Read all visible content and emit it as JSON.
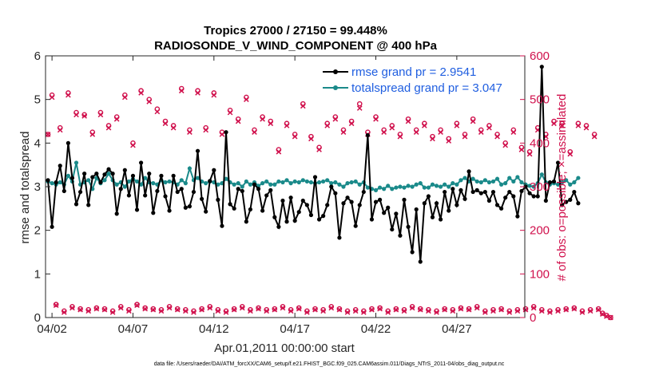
{
  "title_line1": "Tropics 27000 / 27150 = 99.448%",
  "title_line2": "RADIOSONDE_V_WIND_COMPONENT @ 400 hPa",
  "xlabel": "Apr.01,2011 00:00:00 start",
  "ylabel_left": "rmse and totalspread",
  "ylabel_right": "# of obs: o=possible; ×=assimilated",
  "footer": "data file: /Users/raeder/DAI/ATM_forcXX/CAM6_setup/f.e21.FHIST_BGC.f09_025.CAM6assim.011/Diags_NTrS_2011-04/obs_diag_output.nc",
  "colors": {
    "rmse": "#000000",
    "spread": "#1a8a8a",
    "obs": "#d0104c",
    "legend_text": "#1f5ee0"
  },
  "chart_data": {
    "type": "line",
    "x_unit": "days since Apr.01,2011 00:00:00",
    "xlim": [
      0.6,
      30.2
    ],
    "ylim_left": [
      0,
      6
    ],
    "ylim_right": [
      0,
      600
    ],
    "x_ticks": [
      {
        "x": 1,
        "label": "04/02"
      },
      {
        "x": 6,
        "label": "04/07"
      },
      {
        "x": 11,
        "label": "04/12"
      },
      {
        "x": 16,
        "label": "04/17"
      },
      {
        "x": 21,
        "label": "04/22"
      },
      {
        "x": 26,
        "label": "04/27"
      }
    ],
    "y_ticks_left": [
      "0",
      "1",
      "2",
      "3",
      "4",
      "5",
      "6"
    ],
    "y_ticks_right": [
      "0",
      "100",
      "200",
      "300",
      "400",
      "500",
      "600"
    ],
    "legend": [
      {
        "series": "rmse",
        "label": "rmse grand pr = 2.9541"
      },
      {
        "series": "spread",
        "label": "totalspread grand pr = 3.047"
      }
    ],
    "step_days": 0.25,
    "x_start": 0.75,
    "series": [
      {
        "name": "rmse",
        "axis": "left",
        "values": [
          3.15,
          2.08,
          3.1,
          3.48,
          2.9,
          4.0,
          3.2,
          2.6,
          2.88,
          3.3,
          2.58,
          3.22,
          3.3,
          3.1,
          3.28,
          3.4,
          3.3,
          2.38,
          2.95,
          3.38,
          2.8,
          3.25,
          2.47,
          3.55,
          2.8,
          3.3,
          2.4,
          2.9,
          3.25,
          2.78,
          2.45,
          3.25,
          2.88,
          2.95,
          2.52,
          2.55,
          2.88,
          3.82,
          2.72,
          2.43,
          3.13,
          3.38,
          2.7,
          2.1,
          4.25,
          2.6,
          2.5,
          2.95,
          2.9,
          2.2,
          2.48,
          3.05,
          2.95,
          2.45,
          2.8,
          2.92,
          2.3,
          2.08,
          2.68,
          2.2,
          2.75,
          2.22,
          2.42,
          2.68,
          2.58,
          2.35,
          3.22,
          2.25,
          2.33,
          2.58,
          3.0,
          2.85,
          1.83,
          2.62,
          2.75,
          2.65,
          2.1,
          2.58,
          2.88,
          4.18,
          2.25,
          2.65,
          2.7,
          2.4,
          2.52,
          2.02,
          2.38,
          1.88,
          2.7,
          2.08,
          1.5,
          2.48,
          1.28,
          2.62,
          2.78,
          2.3,
          2.62,
          2.25,
          2.88,
          2.45,
          2.95,
          2.58,
          2.92,
          2.72,
          3.35,
          2.88,
          2.92,
          2.85,
          2.88,
          2.68,
          2.88,
          2.58,
          2.5,
          2.75,
          2.88,
          2.78,
          2.32,
          2.9,
          3.0,
          2.85,
          2.78,
          2.78,
          5.75,
          2.68,
          3.1,
          3.12,
          3.55,
          2.58,
          2.65,
          2.7,
          2.88,
          2.62
        ]
      },
      {
        "name": "spread",
        "axis": "left",
        "values": [
          3.12,
          3.08,
          3.05,
          3.1,
          3.05,
          3.25,
          3.12,
          3.55,
          3.05,
          3.1,
          3.15,
          2.95,
          3.2,
          3.08,
          3.15,
          3.3,
          3.15,
          3.05,
          3.1,
          3.0,
          3.12,
          3.18,
          3.12,
          3.05,
          3.2,
          3.1,
          3.08,
          3.05,
          3.15,
          3.1,
          3.12,
          3.1,
          3.05,
          3.15,
          3.08,
          3.42,
          3.15,
          3.2,
          3.12,
          3.08,
          3.12,
          3.1,
          3.05,
          3.08,
          3.18,
          3.1,
          3.05,
          3.08,
          3.0,
          3.12,
          3.05,
          3.1,
          3.02,
          3.08,
          3.12,
          3.05,
          3.05,
          3.12,
          3.1,
          3.15,
          3.08,
          3.12,
          3.1,
          3.15,
          3.12,
          3.1,
          3.08,
          3.1,
          3.12,
          3.15,
          3.08,
          3.1,
          3.05,
          3.0,
          3.08,
          3.1,
          3.12,
          3.05,
          3.1,
          2.98,
          2.95,
          2.92,
          2.98,
          2.95,
          3.02,
          2.95,
          2.98,
          3.0,
          2.98,
          3.02,
          3.0,
          3.05,
          3.08,
          2.98,
          2.98,
          3.05,
          3.02,
          3.0,
          3.05,
          3.0,
          3.08,
          3.05,
          3.15,
          3.2,
          3.12,
          3.18,
          3.12,
          3.1,
          3.15,
          3.1,
          3.12,
          3.18,
          3.05,
          3.08,
          3.2,
          3.12,
          3.22,
          3.1,
          3.05,
          3.02,
          3.0,
          3.08,
          3.28,
          3.1,
          3.05,
          3.08,
          3.05,
          3.1,
          3.15,
          3.05,
          3.1,
          3.2
        ]
      },
      {
        "name": "obs_possible",
        "axis": "right",
        "marker": "circle",
        "values": [
          420,
          510,
          30,
          435,
          15,
          515,
          25,
          470,
          20,
          465,
          18,
          425,
          22,
          470,
          20,
          440,
          15,
          460,
          25,
          510,
          18,
          400,
          30,
          520,
          22,
          500,
          20,
          478,
          18,
          450,
          25,
          440,
          20,
          525,
          18,
          430,
          15,
          520,
          20,
          435,
          25,
          515,
          18,
          425,
          15,
          475,
          20,
          455,
          25,
          505,
          18,
          430,
          22,
          460,
          18,
          450,
          20,
          385,
          25,
          445,
          18,
          420,
          22,
          490,
          15,
          415,
          20,
          390,
          18,
          445,
          25,
          460,
          20,
          430,
          15,
          450,
          18,
          490,
          15,
          425,
          20,
          460,
          22,
          430,
          15,
          440,
          20,
          420,
          18,
          455,
          25,
          430,
          20,
          445,
          18,
          415,
          15,
          430,
          20,
          410,
          18,
          445,
          22,
          420,
          20,
          455,
          25,
          430,
          15,
          440,
          18,
          420,
          20,
          400,
          15,
          430,
          18,
          390,
          20,
          380,
          25,
          435,
          18,
          420,
          15,
          450,
          18,
          445,
          20,
          380,
          22,
          445,
          15,
          440,
          18,
          420,
          20,
          10,
          5,
          0
        ]
      },
      {
        "name": "obs_assimilated",
        "axis": "right",
        "marker": "cross",
        "values": [
          420,
          505,
          28,
          430,
          12,
          510,
          22,
          465,
          18,
          462,
          15,
          420,
          20,
          465,
          18,
          435,
          12,
          455,
          22,
          505,
          15,
          395,
          28,
          515,
          20,
          495,
          18,
          472,
          15,
          445,
          22,
          435,
          18,
          520,
          15,
          425,
          12,
          515,
          18,
          430,
          22,
          510,
          15,
          420,
          12,
          470,
          18,
          450,
          22,
          500,
          15,
          425,
          20,
          455,
          15,
          445,
          18,
          380,
          22,
          440,
          15,
          415,
          20,
          485,
          12,
          410,
          18,
          385,
          15,
          440,
          22,
          455,
          18,
          425,
          12,
          445,
          15,
          480,
          12,
          420,
          18,
          455,
          20,
          425,
          12,
          435,
          18,
          415,
          15,
          450,
          22,
          425,
          18,
          440,
          15,
          410,
          12,
          425,
          18,
          405,
          15,
          440,
          20,
          415,
          18,
          450,
          22,
          425,
          12,
          435,
          15,
          415,
          18,
          395,
          12,
          425,
          15,
          385,
          18,
          375,
          22,
          430,
          15,
          415,
          12,
          445,
          15,
          440,
          18,
          375,
          20,
          440,
          12,
          435,
          15,
          415,
          18,
          8,
          3,
          0
        ]
      }
    ]
  }
}
